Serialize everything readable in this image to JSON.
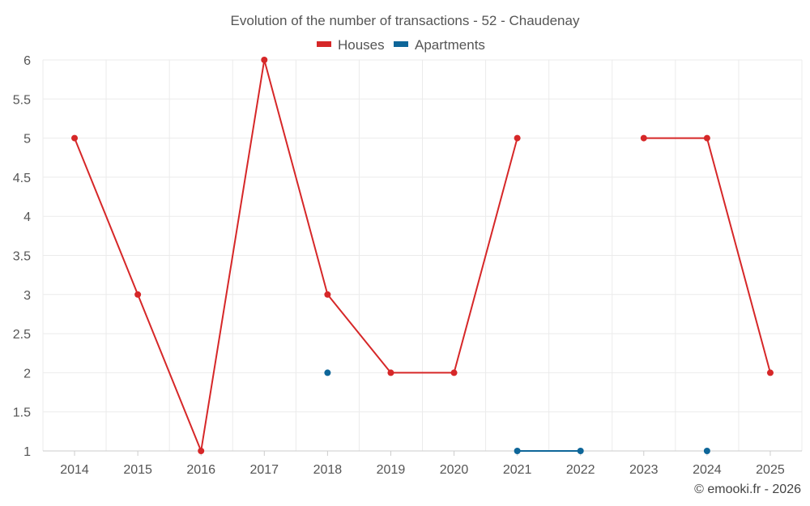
{
  "chart_data": {
    "type": "line",
    "title": "Evolution of the number of transactions - 52 - Chaudenay",
    "categories": [
      "2014",
      "2015",
      "2016",
      "2017",
      "2018",
      "2019",
      "2020",
      "2021",
      "2022",
      "2023",
      "2024",
      "2025"
    ],
    "series": [
      {
        "name": "Houses",
        "color": "#d62728",
        "values": [
          5,
          3,
          1,
          6,
          3,
          2,
          2,
          5,
          null,
          5,
          5,
          2
        ]
      },
      {
        "name": "Apartments",
        "color": "#0e6699",
        "values": [
          null,
          null,
          null,
          null,
          2,
          null,
          null,
          1,
          1,
          null,
          1,
          null
        ]
      }
    ],
    "y_ticks": [
      "1",
      "1.5",
      "2",
      "2.5",
      "3",
      "3.5",
      "4",
      "4.5",
      "5",
      "5.5",
      "6"
    ],
    "ylim": [
      1,
      6
    ],
    "xlabel": "",
    "ylabel": "",
    "legend_position": "top-center",
    "grid": true
  },
  "credit": "© emooki.fr - 2026"
}
